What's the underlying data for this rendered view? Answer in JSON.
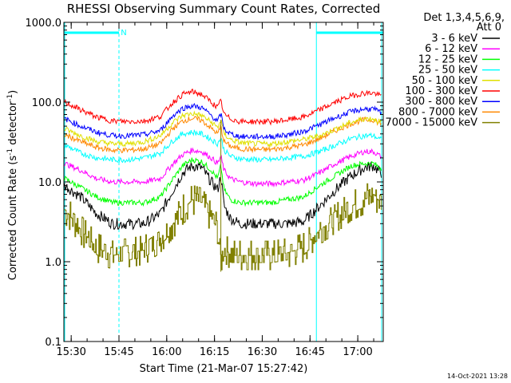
{
  "chart_data": {
    "type": "line",
    "title": "RHESSI Observing Summary Count Rates, Corrected",
    "xlabel": "Start Time (21-Mar-07 15:27:42)",
    "ylabel_main": "Corrected Count Rate (s",
    "ylabel_sup1": "-1",
    "ylabel_mid": " detector",
    "ylabel_sup2": "-1",
    "ylabel_end": ")",
    "y_scale": "log",
    "ylim": [
      0.1,
      1000
    ],
    "xlim": [
      "15:27:42",
      "17:08:00"
    ],
    "y_ticks": [
      "0.1",
      "1.0",
      "10.0",
      "100.0",
      "1000.0"
    ],
    "x_ticks": [
      "15:30",
      "15:45",
      "16:00",
      "16:15",
      "16:30",
      "16:45",
      "17:00"
    ],
    "legend_header": [
      "Det 1,3,4,5,6,9,",
      "Att 0"
    ],
    "legend_position": "right-outside",
    "footer_stamp": "14-Oct-2021 13:28",
    "night_intervals": [
      [
        "15:27:42",
        "15:45:00"
      ],
      [
        "16:47:00",
        "17:08:00"
      ]
    ],
    "saa_flag_label": "N",
    "shape_x": [
      "15:28",
      "15:33",
      "15:38",
      "15:43",
      "15:48",
      "15:53",
      "15:58",
      "16:02",
      "16:05",
      "16:08",
      "16:11",
      "16:14",
      "16:16",
      "16:17",
      "16:18",
      "16:20",
      "16:23",
      "16:28",
      "16:33",
      "16:38",
      "16:43",
      "16:48",
      "16:53",
      "16:58",
      "17:02",
      "17:05",
      "17:07"
    ],
    "series": [
      {
        "name": "3 - 6 keV",
        "color": "#000000",
        "values": [
          9,
          6.5,
          4,
          3,
          3,
          3,
          4,
          8,
          13,
          16,
          15,
          10,
          8,
          12,
          5,
          3.5,
          3,
          3,
          3,
          3,
          3.2,
          5,
          8,
          12,
          15,
          16,
          13
        ]
      },
      {
        "name": "6 - 12 keV",
        "color": "#ff00ff",
        "values": [
          17,
          14,
          11,
          10,
          10,
          10,
          11,
          17,
          22,
          25,
          24,
          20,
          17,
          21,
          14,
          11,
          10,
          9.5,
          9.5,
          10,
          10.5,
          13,
          17,
          21,
          24,
          24,
          21
        ]
      },
      {
        "name": "12 - 25 keV",
        "color": "#00ff00",
        "values": [
          11,
          8.5,
          6.5,
          5.5,
          5.5,
          5.5,
          6.5,
          11,
          16,
          19,
          18,
          14,
          11,
          16,
          8,
          6,
          5.5,
          5.5,
          5.5,
          6,
          6.5,
          9,
          12,
          16,
          17,
          17,
          15
        ]
      },
      {
        "name": "25 - 50 keV",
        "color": "#00ffff",
        "values": [
          29,
          23,
          20,
          19,
          19,
          20,
          23,
          33,
          40,
          42,
          40,
          34,
          30,
          36,
          25,
          21,
          19.5,
          19,
          19,
          20,
          21,
          24,
          29,
          35,
          38,
          38,
          34
        ]
      },
      {
        "name": "50 - 100 keV",
        "color": "#e0e000",
        "values": [
          46,
          38,
          32,
          30,
          30,
          32,
          38,
          56,
          68,
          72,
          68,
          56,
          48,
          60,
          40,
          34,
          31,
          30,
          30,
          32,
          34,
          38,
          46,
          56,
          62,
          62,
          56
        ]
      },
      {
        "name": "100 - 300 keV",
        "color": "#ff0000",
        "values": [
          100,
          80,
          65,
          58,
          57,
          58,
          66,
          100,
          125,
          135,
          125,
          100,
          85,
          105,
          70,
          62,
          57,
          57,
          57,
          60,
          65,
          80,
          100,
          120,
          130,
          130,
          120
        ]
      },
      {
        "name": "300 - 800 keV",
        "color": "#0000ff",
        "values": [
          62,
          50,
          42,
          38,
          38,
          39,
          44,
          68,
          84,
          90,
          85,
          68,
          57,
          72,
          46,
          40,
          37,
          37,
          37,
          39,
          43,
          52,
          64,
          76,
          82,
          82,
          74
        ]
      },
      {
        "name": "800 - 7000 keV",
        "color": "#ff8800",
        "values": [
          39,
          32,
          27,
          25,
          25,
          26,
          30,
          47,
          58,
          63,
          59,
          47,
          40,
          50,
          32,
          28,
          26,
          25.5,
          25.5,
          27,
          29,
          35,
          44,
          54,
          60,
          60,
          54
        ]
      },
      {
        "name": "7000 - 15000 keV",
        "color": "#808000",
        "values": [
          4.5,
          2.5,
          1.5,
          1.2,
          1.3,
          1.4,
          2,
          3,
          4.5,
          6,
          5.5,
          3.5,
          2.5,
          0.9,
          1.5,
          1.2,
          1.2,
          1.2,
          1.2,
          1.3,
          1.5,
          2.5,
          3.5,
          5,
          6,
          7,
          5.5
        ]
      }
    ]
  }
}
